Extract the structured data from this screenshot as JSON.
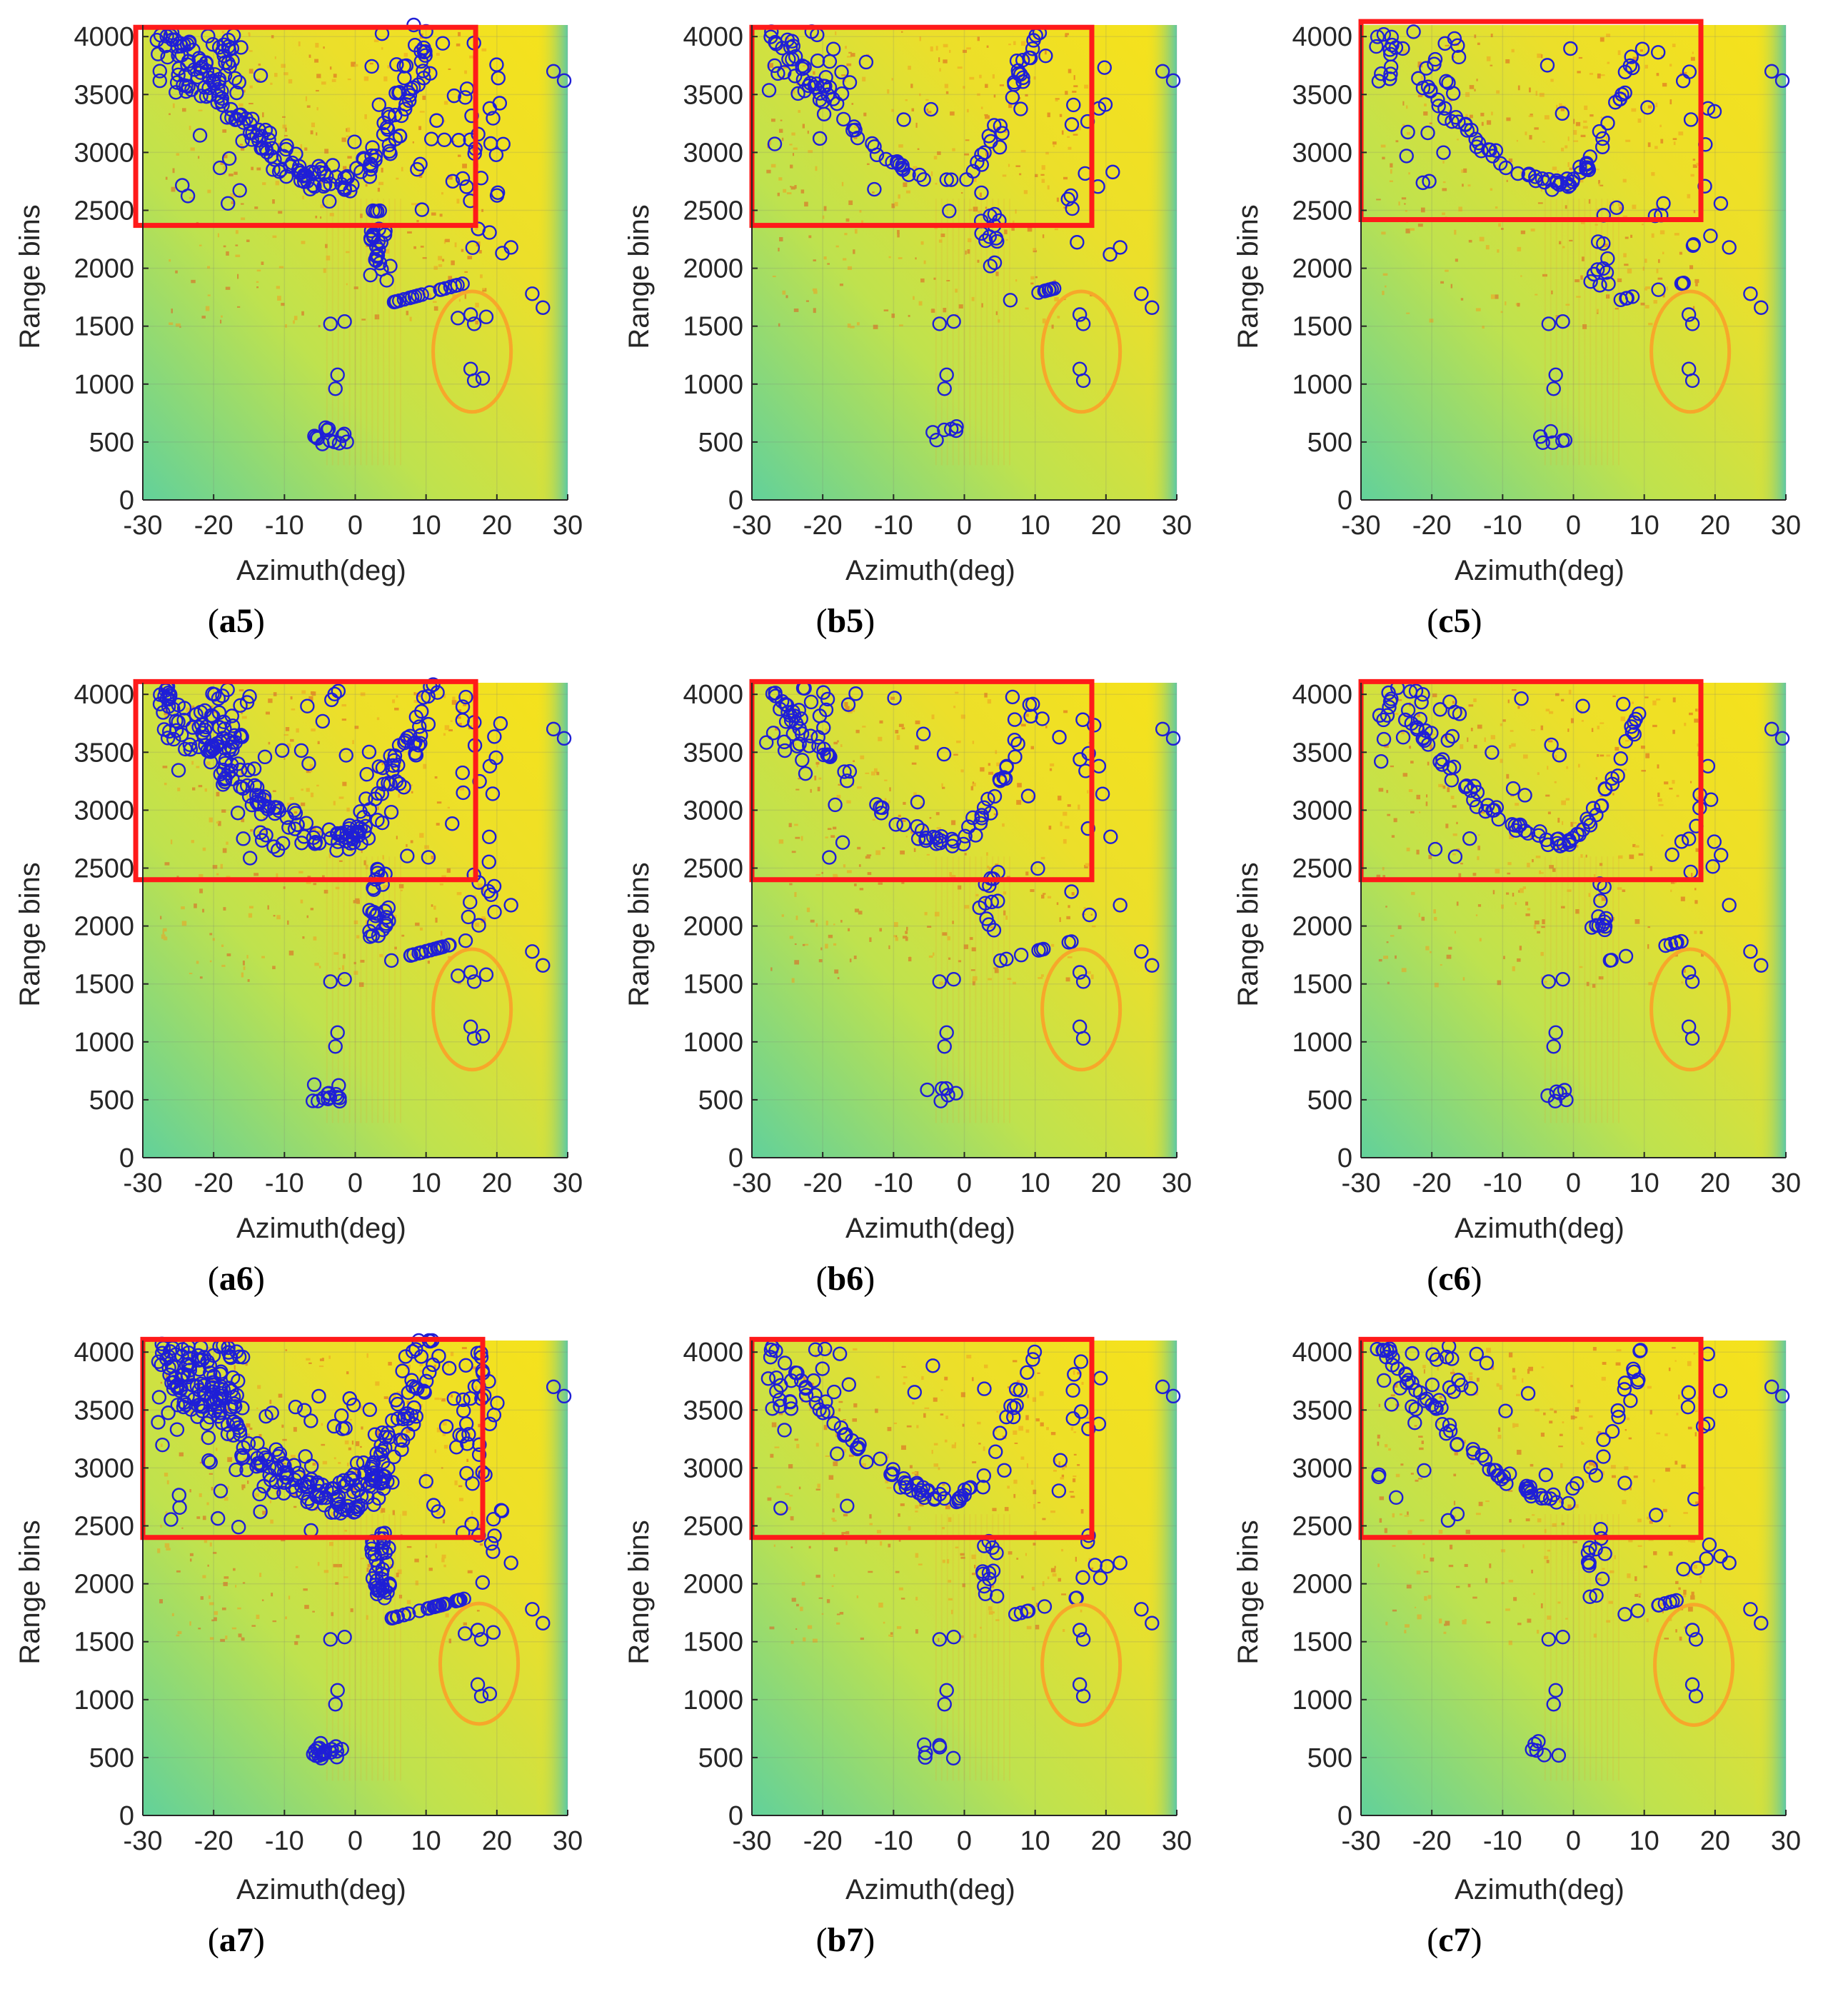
{
  "figure": {
    "colors": {
      "background_low": "#62d19a",
      "background_mid": "#cfe34a",
      "background_high": "#f6e21a",
      "clutter": "#f0a020",
      "detections": "#1f1fd6",
      "roi_box": "#ff1a1a",
      "ellipse": "#f7a72a",
      "axis": "#262626"
    }
  },
  "chart_data": [
    {
      "id": "a5",
      "type": "scatter",
      "label_prefix": "a",
      "label_suffix": "5",
      "xlabel": "Azimuth(deg)",
      "ylabel": "Range bins",
      "xlim": [
        -30,
        30
      ],
      "ylim": [
        0,
        4100
      ],
      "xticks": [
        "-30",
        "-20",
        "-10",
        "0",
        "10",
        "20",
        "30"
      ],
      "yticks": [
        "0",
        "500",
        "1000",
        "1500",
        "2000",
        "2500",
        "3000",
        "3500",
        "4000"
      ],
      "roi_box": {
        "x": [
          -31,
          17
        ],
        "y": [
          2370,
          4080
        ]
      },
      "ellipse": {
        "cx": 16.5,
        "cy": 1280,
        "rx": 5.5,
        "ry": 520
      },
      "density": "high",
      "seed": 11
    },
    {
      "id": "b5",
      "type": "scatter",
      "label_prefix": "b",
      "label_suffix": "5",
      "xlabel": "Azimuth(deg)",
      "ylabel": "Range bins",
      "xlim": [
        -30,
        30
      ],
      "ylim": [
        0,
        4100
      ],
      "xticks": [
        "-30",
        "-20",
        "-10",
        "0",
        "10",
        "20",
        "30"
      ],
      "yticks": [
        "0",
        "500",
        "1000",
        "1500",
        "2000",
        "2500",
        "3000",
        "3500",
        "4000"
      ],
      "roi_box": {
        "x": [
          -30,
          18
        ],
        "y": [
          2370,
          4080
        ]
      },
      "ellipse": {
        "cx": 16.5,
        "cy": 1280,
        "rx": 5.5,
        "ry": 520
      },
      "density": "low",
      "seed": 23
    },
    {
      "id": "c5",
      "type": "scatter",
      "label_prefix": "c",
      "label_suffix": "5",
      "xlabel": "Azimuth(deg)",
      "ylabel": "Range bins",
      "xlim": [
        -30,
        30
      ],
      "ylim": [
        0,
        4100
      ],
      "xticks": [
        "-30",
        "-20",
        "-10",
        "0",
        "10",
        "20",
        "30"
      ],
      "yticks": [
        "0",
        "500",
        "1000",
        "1500",
        "2000",
        "2500",
        "3000",
        "3500",
        "4000"
      ],
      "roi_box": {
        "x": [
          -30,
          18
        ],
        "y": [
          2420,
          4130
        ]
      },
      "ellipse": {
        "cx": 16.5,
        "cy": 1280,
        "rx": 5.5,
        "ry": 520
      },
      "density": "low",
      "seed": 37
    },
    {
      "id": "a6",
      "type": "scatter",
      "label_prefix": "a",
      "label_suffix": "6",
      "xlabel": "Azimuth(deg)",
      "ylabel": "Range bins",
      "xlim": [
        -30,
        30
      ],
      "ylim": [
        0,
        4100
      ],
      "xticks": [
        "-30",
        "-20",
        "-10",
        "0",
        "10",
        "20",
        "30"
      ],
      "yticks": [
        "0",
        "500",
        "1000",
        "1500",
        "2000",
        "2500",
        "3000",
        "3500",
        "4000"
      ],
      "roi_box": {
        "x": [
          -31,
          17
        ],
        "y": [
          2400,
          4110
        ]
      },
      "ellipse": {
        "cx": 16.5,
        "cy": 1280,
        "rx": 5.5,
        "ry": 520
      },
      "density": "high",
      "seed": 41
    },
    {
      "id": "b6",
      "type": "scatter",
      "label_prefix": "b",
      "label_suffix": "6",
      "xlabel": "Azimuth(deg)",
      "ylabel": "Range bins",
      "xlim": [
        -30,
        30
      ],
      "ylim": [
        0,
        4100
      ],
      "xticks": [
        "-30",
        "-20",
        "-10",
        "0",
        "10",
        "20",
        "30"
      ],
      "yticks": [
        "0",
        "500",
        "1000",
        "1500",
        "2000",
        "2500",
        "3000",
        "3500",
        "4000"
      ],
      "roi_box": {
        "x": [
          -30,
          18
        ],
        "y": [
          2400,
          4110
        ]
      },
      "ellipse": {
        "cx": 16.5,
        "cy": 1280,
        "rx": 5.5,
        "ry": 520
      },
      "density": "low",
      "seed": 53
    },
    {
      "id": "c6",
      "type": "scatter",
      "label_prefix": "c",
      "label_suffix": "6",
      "xlabel": "Azimuth(deg)",
      "ylabel": "Range bins",
      "xlim": [
        -30,
        30
      ],
      "ylim": [
        0,
        4100
      ],
      "xticks": [
        "-30",
        "-20",
        "-10",
        "0",
        "10",
        "20",
        "30"
      ],
      "yticks": [
        "0",
        "500",
        "1000",
        "1500",
        "2000",
        "2500",
        "3000",
        "3500",
        "4000"
      ],
      "roi_box": {
        "x": [
          -30,
          18
        ],
        "y": [
          2400,
          4110
        ]
      },
      "ellipse": {
        "cx": 16.5,
        "cy": 1280,
        "rx": 5.5,
        "ry": 520
      },
      "density": "low",
      "seed": 61
    },
    {
      "id": "a7",
      "type": "scatter",
      "label_prefix": "a",
      "label_suffix": "7",
      "xlabel": "Azimuth(deg)",
      "ylabel": "Range bins",
      "xlim": [
        -30,
        30
      ],
      "ylim": [
        0,
        4100
      ],
      "xticks": [
        "-30",
        "-20",
        "-10",
        "0",
        "10",
        "20",
        "30"
      ],
      "yticks": [
        "0",
        "500",
        "1000",
        "1500",
        "2000",
        "2500",
        "3000",
        "3500",
        "4000"
      ],
      "roi_box": {
        "x": [
          -30,
          18
        ],
        "y": [
          2400,
          4110
        ]
      },
      "ellipse": {
        "cx": 17.5,
        "cy": 1310,
        "rx": 5.5,
        "ry": 520
      },
      "density": "veryhigh",
      "seed": 71
    },
    {
      "id": "b7",
      "type": "scatter",
      "label_prefix": "b",
      "label_suffix": "7",
      "xlabel": "Azimuth(deg)",
      "ylabel": "Range bins",
      "xlim": [
        -30,
        30
      ],
      "ylim": [
        0,
        4100
      ],
      "xticks": [
        "-30",
        "-20",
        "-10",
        "0",
        "10",
        "20",
        "30"
      ],
      "yticks": [
        "0",
        "500",
        "1000",
        "1500",
        "2000",
        "2500",
        "3000",
        "3500",
        "4000"
      ],
      "roi_box": {
        "x": [
          -30,
          18
        ],
        "y": [
          2400,
          4110
        ]
      },
      "ellipse": {
        "cx": 16.5,
        "cy": 1300,
        "rx": 5.5,
        "ry": 520
      },
      "density": "low",
      "seed": 83
    },
    {
      "id": "c7",
      "type": "scatter",
      "label_prefix": "c",
      "label_suffix": "7",
      "xlabel": "Azimuth(deg)",
      "ylabel": "Range bins",
      "xlim": [
        -30,
        30
      ],
      "ylim": [
        0,
        4100
      ],
      "xticks": [
        "-30",
        "-20",
        "-10",
        "0",
        "10",
        "20",
        "30"
      ],
      "yticks": [
        "0",
        "500",
        "1000",
        "1500",
        "2000",
        "2500",
        "3000",
        "3500",
        "4000"
      ],
      "roi_box": {
        "x": [
          -30,
          18
        ],
        "y": [
          2400,
          4110
        ]
      },
      "ellipse": {
        "cx": 17,
        "cy": 1300,
        "rx": 5.5,
        "ry": 520
      },
      "density": "low",
      "seed": 97
    }
  ]
}
